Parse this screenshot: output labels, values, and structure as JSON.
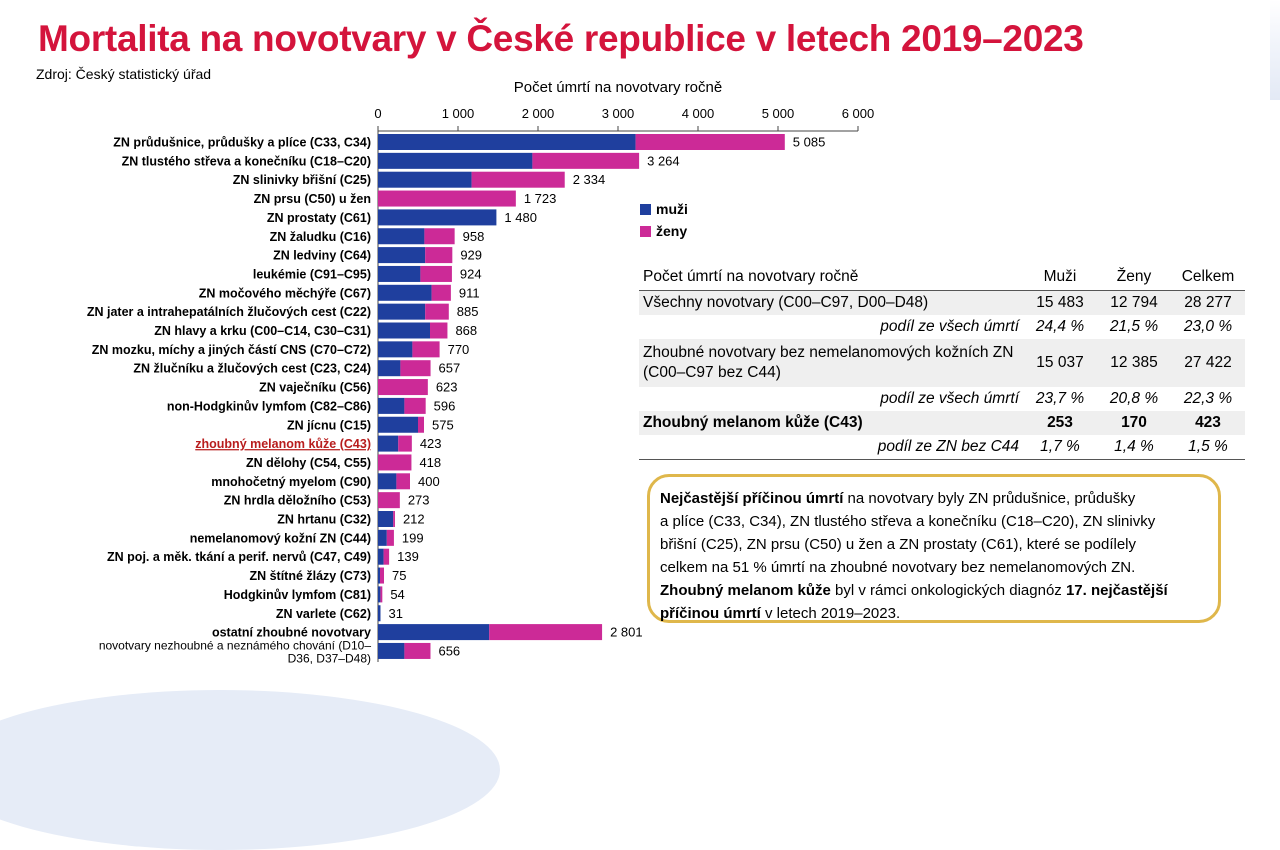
{
  "title": "Mortalita na novotvary v České republice v letech 2019–2023",
  "source": "Zdroj: Český statistický úřad",
  "colors": {
    "title": "#d4143c",
    "male": "#1f3f9e",
    "female": "#cc2a97",
    "melanoma_label": "#b81d1d",
    "box_border": "#dfb74b"
  },
  "chart_data": {
    "type": "bar",
    "orientation": "horizontal",
    "stacked": true,
    "title": "Počet úmrtí na novotvary ročně",
    "xlim": [
      0,
      6000
    ],
    "ticks": [
      {
        "value": 0,
        "label": "0"
      },
      {
        "value": 1000,
        "label": "1 000"
      },
      {
        "value": 2000,
        "label": "2 000"
      },
      {
        "value": 3000,
        "label": "3 000"
      },
      {
        "value": 4000,
        "label": "4 000"
      },
      {
        "value": 5000,
        "label": "5 000"
      },
      {
        "value": 6000,
        "label": "6 000"
      }
    ],
    "categories": [
      "ZN průdušnice, průdušky a plíce (C33, C34)",
      "ZN tlustého střeva a konečníku (C18–C20)",
      "ZN slinivky břišní (C25)",
      "ZN prsu (C50) u žen",
      "ZN prostaty (C61)",
      "ZN žaludku (C16)",
      "ZN ledviny (C64)",
      "leukémie (C91–C95)",
      "ZN močového měchýře (C67)",
      "ZN jater a intrahepatálních žlučových cest (C22)",
      "ZN hlavy a krku (C00–C14, C30–C31)",
      "ZN mozku, míchy a jiných částí CNS (C70–C72)",
      "ZN žlučníku a žlučových cest (C23, C24)",
      "ZN vaječníku (C56)",
      "non-Hodgkinův lymfom (C82–C86)",
      "ZN jícnu (C15)",
      "zhoubný melanom kůže (C43)",
      "ZN dělohy (C54, C55)",
      "mnohočetný myelom (C90)",
      "ZN hrdla děložního (C53)",
      "ZN hrtanu (C32)",
      "nemelanomový kožní ZN (C44)",
      "ZN poj. a měk. tkání a perif. nervů (C47, C49)",
      "ZN štítné žlázy (C73)",
      "Hodgkinův lymfom (C81)",
      "ZN varlete (C62)",
      "ostatní zhoubné novotvary",
      "novotvary nezhoubné a neznámého chování (D10–D36, D37–D48)"
    ],
    "series": [
      {
        "name": "muži",
        "values": [
          3220,
          1930,
          1170,
          0,
          1480,
          580,
          590,
          530,
          670,
          590,
          650,
          430,
          280,
          0,
          330,
          500,
          253,
          0,
          230,
          0,
          190,
          110,
          70,
          25,
          30,
          31,
          1390,
          330
        ]
      },
      {
        "name": "ženy",
        "values": [
          1865,
          1334,
          1164,
          1723,
          0,
          378,
          339,
          394,
          241,
          295,
          218,
          340,
          377,
          623,
          266,
          75,
          170,
          418,
          170,
          273,
          22,
          89,
          69,
          50,
          24,
          0,
          1411,
          326
        ]
      }
    ],
    "totals": [
      "5 085",
      "3 264",
      "2 334",
      "1 723",
      "1 480",
      "958",
      "929",
      "924",
      "911",
      "885",
      "868",
      "770",
      "657",
      "623",
      "596",
      "575",
      "423",
      "418",
      "400",
      "273",
      "212",
      "199",
      "139",
      "75",
      "54",
      "31",
      "2 801",
      "656"
    ],
    "highlight_index": 16,
    "legend_position": "right"
  },
  "legend": [
    {
      "label": "muži",
      "color": "#1f3f9e"
    },
    {
      "label": "ženy",
      "color": "#cc2a97"
    }
  ],
  "stats_table": {
    "header": [
      "Počet úmrtí na novotvary ročně",
      "Muži",
      "Ženy",
      "Celkem"
    ],
    "rows": [
      {
        "label": "Všechny novotvary (C00–C97, D00–D48)",
        "values": [
          "15 483",
          "12 794",
          "28 277"
        ]
      },
      {
        "label": "podíl ze všech úmrtí",
        "values": [
          "24,4 %",
          "21,5 %",
          "23,0 %"
        ]
      },
      {
        "label": "Zhoubné novotvary bez nemelanomových kožních ZN (C00–C97 bez C44)",
        "values": [
          "15 037",
          "12 385",
          "27 422"
        ]
      },
      {
        "label": "podíl ze všech úmrtí",
        "values": [
          "23,7 %",
          "20,8 %",
          "22,3 %"
        ]
      },
      {
        "label": "Zhoubný melanom kůže (C43)",
        "values": [
          "253",
          "170",
          "423"
        ]
      },
      {
        "label": "podíl ze ZN bez C44",
        "values": [
          "1,7 %",
          "1,4 %",
          "1,5 %"
        ]
      }
    ]
  },
  "note": {
    "l1_b": "Nejčastější příčinou úmrtí",
    "l1": " na novotvary byly ZN průdušnice, průdušky",
    "l2": "a plíce (C33, C34), ZN tlustého střeva a konečníku (C18–C20), ZN slinivky",
    "l3": "břišní (C25), ZN prsu (C50) u žen a ZN prostaty (C61), které se podílely",
    "l4": "celkem na 51 % úmrtí na zhoubné novotvary bez nemelanomových ZN.",
    "l5_b1": "Zhoubný melanom kůže",
    "l5": " byl v rámci onkologických diagnóz ",
    "l5_b2": "17. nejčastější",
    "l6_b": "příčinou úmrtí",
    "l6": " v letech 2019–2023."
  }
}
